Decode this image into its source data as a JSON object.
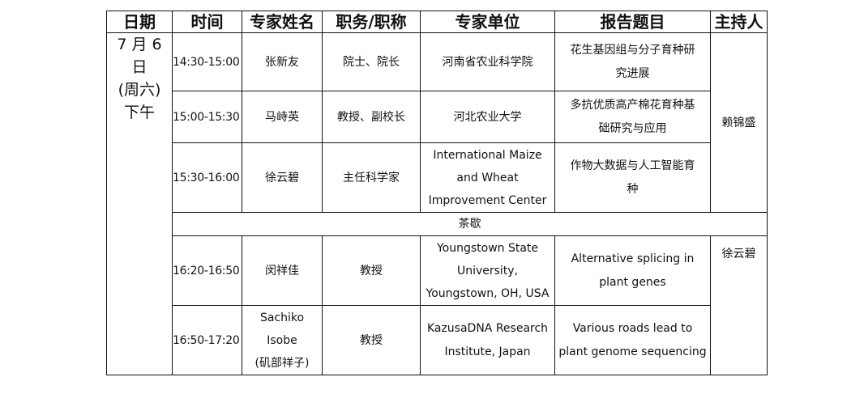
{
  "headers": [
    "日期",
    "时间",
    "专家姓名",
    "职务/职称",
    "专家单位",
    "报告题目",
    "主持人"
  ],
  "date": [
    "7 月 6 日",
    "(周六)",
    "下午"
  ],
  "sessions": [
    {
      "time": "14:30-15:00",
      "name": [
        "张新友"
      ],
      "position": "院士、院长",
      "affiliation": [
        "河南省农业科学院"
      ],
      "title": [
        "花生基因组与分子育种研",
        "究进展"
      ]
    },
    {
      "time": "15:00-15:30",
      "name": [
        "马峙英"
      ],
      "position": "教授、副校长",
      "affiliation": [
        "河北农业大学"
      ],
      "title": [
        "多抗优质高产棉花育种基",
        "础研究与应用"
      ]
    },
    {
      "time": "15:30-16:00",
      "name": [
        "徐云碧"
      ],
      "position": "主任科学家",
      "affiliation": [
        "International Maize",
        "and Wheat",
        "Improvement Center"
      ],
      "title": [
        "作物大数据与人工智能育",
        "种"
      ]
    },
    {
      "time": "16:20-16:50",
      "name": [
        "闵祥佳"
      ],
      "position": "教授",
      "affiliation": [
        "Youngstown State",
        "University,",
        "Youngstown, OH, USA"
      ],
      "title": [
        "Alternative splicing in",
        "plant genes"
      ]
    },
    {
      "time": "16:50-17:20",
      "name": [
        "Sachiko",
        "Isobe",
        "(矶部祥子)"
      ],
      "position": "教授",
      "affiliation": [
        "KazusaDNA Research",
        "Institute, Japan"
      ],
      "title": [
        "Various roads lead to",
        "plant genome sequencing"
      ]
    }
  ],
  "break": "茶歇",
  "hosts": [
    "赖锦盛",
    "徐云碧"
  ]
}
